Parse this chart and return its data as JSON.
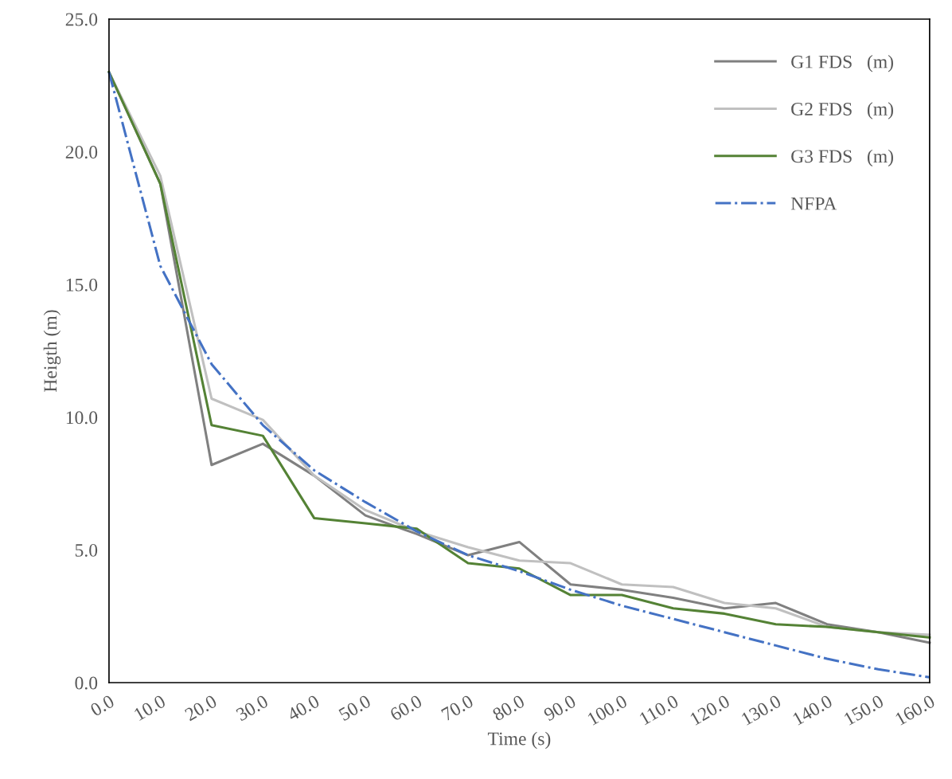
{
  "chart_data": {
    "type": "line",
    "xlabel": "Time (s)",
    "ylabel": "Heigth (m)",
    "x": [
      0,
      10,
      20,
      30,
      40,
      50,
      60,
      70,
      80,
      90,
      100,
      110,
      120,
      130,
      140,
      150,
      160
    ],
    "series": [
      {
        "name": "G1 FDS   (m)",
        "color": "#808080",
        "line_style": "solid",
        "values": [
          23.0,
          18.8,
          8.2,
          9.0,
          7.8,
          6.3,
          5.6,
          4.8,
          5.3,
          3.7,
          3.5,
          3.2,
          2.8,
          3.0,
          2.2,
          1.9,
          1.5
        ]
      },
      {
        "name": "G2 FDS   (m)",
        "color": "#c0c0c0",
        "line_style": "solid",
        "values": [
          23.0,
          19.1,
          10.7,
          9.9,
          7.8,
          6.5,
          5.7,
          5.1,
          4.6,
          4.5,
          3.7,
          3.6,
          3.0,
          2.8,
          2.1,
          1.9,
          1.8
        ]
      },
      {
        "name": "G3 FDS   (m)",
        "color": "#548235",
        "line_style": "solid",
        "values": [
          23.0,
          18.8,
          9.7,
          9.3,
          6.2,
          6.0,
          5.8,
          4.5,
          4.3,
          3.3,
          3.3,
          2.8,
          2.6,
          2.2,
          2.1,
          1.9,
          1.7
        ]
      },
      {
        "name": "NFPA",
        "color": "#4472c4",
        "line_style": "dashdot",
        "values": [
          23.0,
          15.7,
          12.0,
          9.7,
          8.0,
          6.8,
          5.7,
          4.8,
          4.2,
          3.5,
          2.9,
          2.4,
          1.9,
          1.4,
          0.9,
          0.5,
          0.2
        ]
      }
    ],
    "xlim": [
      0,
      160
    ],
    "xticks": [
      {
        "value": 0,
        "label": "0.0"
      },
      {
        "value": 10,
        "label": "10.0"
      },
      {
        "value": 20,
        "label": "20.0"
      },
      {
        "value": 30,
        "label": "30.0"
      },
      {
        "value": 40,
        "label": "40.0"
      },
      {
        "value": 50,
        "label": "50.0"
      },
      {
        "value": 60,
        "label": "60.0"
      },
      {
        "value": 70,
        "label": "70.0"
      },
      {
        "value": 80,
        "label": "80.0"
      },
      {
        "value": 90,
        "label": "90.0"
      },
      {
        "value": 100,
        "label": "100.0"
      },
      {
        "value": 110,
        "label": "110.0"
      },
      {
        "value": 120,
        "label": "120.0"
      },
      {
        "value": 130,
        "label": "130.0"
      },
      {
        "value": 140,
        "label": "140.0"
      },
      {
        "value": 150,
        "label": "150.0"
      },
      {
        "value": 160,
        "label": "160.0"
      }
    ],
    "ylim": [
      0,
      25
    ],
    "yticks": [
      {
        "value": 0,
        "label": "0.0"
      },
      {
        "value": 5,
        "label": "5.0"
      },
      {
        "value": 10,
        "label": "10.0"
      },
      {
        "value": 15,
        "label": "15.0"
      },
      {
        "value": 20,
        "label": "20.0"
      },
      {
        "value": 25,
        "label": "25.0"
      }
    ],
    "grid": false,
    "legend": "top right",
    "marker": "none"
  }
}
